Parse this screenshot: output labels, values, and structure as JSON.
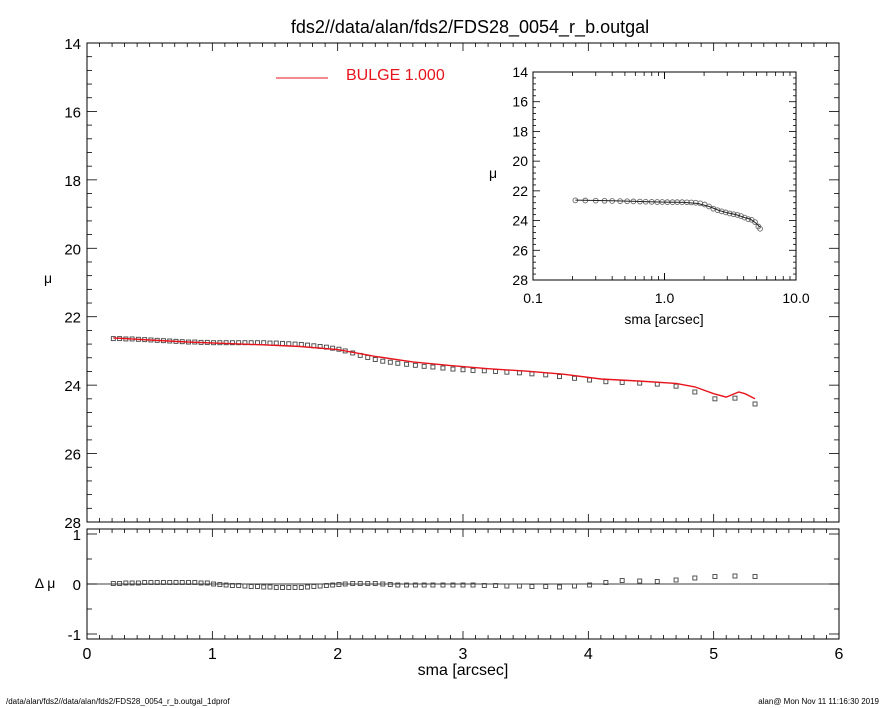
{
  "title": "fds2//data/alan/fds2/FDS28_0054_r_b.outgal",
  "footer": {
    "left": "/data/alan/fds2//data/alan/fds2/FDS28_0054_r_b.outgal_1dprof",
    "right": "alan@  Mon Nov 11 11:16:30 2019"
  },
  "colors": {
    "model": "#e8141c",
    "data": "#444444",
    "axis": "#000000"
  },
  "chart_data": [
    {
      "id": "main",
      "type": "scatter",
      "xlabel": "sma [arcsec]",
      "ylabel": "μ",
      "xlim": [
        0,
        6
      ],
      "ylim": [
        28,
        14
      ],
      "y_inverted": true,
      "xticks": [
        "0",
        "1",
        "2",
        "3",
        "4",
        "5",
        "6"
      ],
      "yticks": [
        "14",
        "16",
        "18",
        "20",
        "22",
        "24",
        "26",
        "28"
      ],
      "legend": {
        "label": "BULGE  1.000",
        "color": "#e8141c",
        "placement": "top-center"
      },
      "series": [
        {
          "kind": "points",
          "x": [
            0.21,
            0.26,
            0.31,
            0.36,
            0.41,
            0.46,
            0.51,
            0.56,
            0.61,
            0.66,
            0.71,
            0.76,
            0.81,
            0.86,
            0.91,
            0.96,
            1.01,
            1.06,
            1.11,
            1.16,
            1.21,
            1.26,
            1.31,
            1.36,
            1.41,
            1.46,
            1.51,
            1.56,
            1.61,
            1.66,
            1.71,
            1.76,
            1.81,
            1.86,
            1.91,
            1.96,
            2.01,
            2.06,
            2.12,
            2.18,
            2.24,
            2.3,
            2.36,
            2.42,
            2.48,
            2.55,
            2.62,
            2.69,
            2.76,
            2.84,
            2.92,
            3.0,
            3.08,
            3.17,
            3.26,
            3.35,
            3.45,
            3.55,
            3.66,
            3.77,
            3.89,
            4.01,
            4.14,
            4.27,
            4.41,
            4.55,
            4.7,
            4.85,
            5.01,
            5.17,
            5.33
          ],
          "y": [
            22.64,
            22.64,
            22.65,
            22.65,
            22.66,
            22.67,
            22.68,
            22.69,
            22.7,
            22.71,
            22.72,
            22.73,
            22.74,
            22.74,
            22.75,
            22.75,
            22.76,
            22.76,
            22.76,
            22.76,
            22.76,
            22.76,
            22.76,
            22.76,
            22.76,
            22.77,
            22.77,
            22.78,
            22.79,
            22.8,
            22.81,
            22.83,
            22.85,
            22.87,
            22.89,
            22.92,
            22.95,
            23.0,
            23.06,
            23.13,
            23.19,
            23.25,
            23.3,
            23.33,
            23.36,
            23.39,
            23.42,
            23.45,
            23.47,
            23.5,
            23.53,
            23.55,
            23.57,
            23.58,
            23.6,
            23.62,
            23.64,
            23.67,
            23.7,
            23.75,
            23.8,
            23.85,
            23.9,
            23.92,
            23.94,
            23.97,
            24.03,
            24.2,
            24.4,
            24.38,
            24.55
          ]
        },
        {
          "kind": "line",
          "name": "BULGE  1.000",
          "x": [
            0.21,
            0.5,
            0.8,
            1.1,
            1.4,
            1.7,
            2.0,
            2.3,
            2.6,
            2.9,
            3.2,
            3.5,
            3.8,
            4.1,
            4.4,
            4.7,
            4.85,
            5.0,
            5.1,
            5.2,
            5.25,
            5.33
          ],
          "y": [
            22.62,
            22.68,
            22.74,
            22.78,
            22.82,
            22.87,
            22.96,
            23.16,
            23.32,
            23.43,
            23.52,
            23.59,
            23.68,
            23.82,
            23.88,
            23.95,
            24.05,
            24.25,
            24.35,
            24.2,
            24.25,
            24.4
          ]
        }
      ]
    },
    {
      "id": "residual",
      "type": "scatter",
      "xlabel": "sma [arcsec]",
      "ylabel": "Δ μ",
      "xlim": [
        0,
        6
      ],
      "ylim": [
        -1.1,
        1.1
      ],
      "xticks": [
        "0",
        "1",
        "2",
        "3",
        "4",
        "5",
        "6"
      ],
      "yticks": [
        "-1",
        "0",
        "1"
      ],
      "zero_line": true,
      "series": [
        {
          "kind": "points",
          "x": [
            0.21,
            0.26,
            0.31,
            0.36,
            0.41,
            0.46,
            0.51,
            0.56,
            0.61,
            0.66,
            0.71,
            0.76,
            0.81,
            0.86,
            0.91,
            0.96,
            1.01,
            1.06,
            1.11,
            1.16,
            1.21,
            1.26,
            1.31,
            1.36,
            1.41,
            1.46,
            1.51,
            1.56,
            1.61,
            1.66,
            1.71,
            1.76,
            1.81,
            1.86,
            1.91,
            1.96,
            2.01,
            2.06,
            2.12,
            2.18,
            2.24,
            2.3,
            2.36,
            2.42,
            2.48,
            2.55,
            2.62,
            2.69,
            2.76,
            2.84,
            2.92,
            3.0,
            3.08,
            3.17,
            3.26,
            3.35,
            3.45,
            3.55,
            3.66,
            3.77,
            3.89,
            4.01,
            4.14,
            4.27,
            4.41,
            4.55,
            4.7,
            4.85,
            5.01,
            5.17,
            5.33
          ],
          "y": [
            0.01,
            0.01,
            0.02,
            0.02,
            0.02,
            0.03,
            0.03,
            0.03,
            0.03,
            0.03,
            0.03,
            0.03,
            0.03,
            0.03,
            0.02,
            0.02,
            0.0,
            -0.01,
            -0.02,
            -0.03,
            -0.03,
            -0.04,
            -0.05,
            -0.05,
            -0.06,
            -0.06,
            -0.07,
            -0.07,
            -0.07,
            -0.07,
            -0.07,
            -0.06,
            -0.05,
            -0.04,
            -0.03,
            -0.02,
            -0.01,
            0.0,
            0.01,
            0.01,
            0.01,
            0.01,
            0.0,
            -0.01,
            -0.02,
            -0.02,
            -0.02,
            -0.02,
            -0.02,
            -0.02,
            -0.02,
            -0.02,
            -0.02,
            -0.03,
            -0.03,
            -0.04,
            -0.04,
            -0.05,
            -0.05,
            -0.06,
            -0.04,
            -0.02,
            0.03,
            0.07,
            0.06,
            0.05,
            0.08,
            0.12,
            0.15,
            0.16,
            0.15
          ]
        }
      ]
    },
    {
      "id": "inset",
      "type": "scatter",
      "xlabel": "sma [arcsec]",
      "ylabel": "μ",
      "xscale": "log",
      "xlim": [
        0.1,
        10.0
      ],
      "ylim": [
        28,
        14
      ],
      "y_inverted": true,
      "xticks": [
        "0.1",
        "1.0",
        "10.0"
      ],
      "yticks": [
        "14",
        "16",
        "18",
        "20",
        "22",
        "24",
        "26",
        "28"
      ],
      "series": [
        {
          "kind": "points",
          "x": [
            0.21,
            0.25,
            0.3,
            0.35,
            0.4,
            0.46,
            0.52,
            0.58,
            0.65,
            0.72,
            0.8,
            0.88,
            0.96,
            1.05,
            1.15,
            1.25,
            1.36,
            1.48,
            1.6,
            1.73,
            1.87,
            2.02,
            2.18,
            2.35,
            2.53,
            2.72,
            2.92,
            3.13,
            3.35,
            3.58,
            3.82,
            4.07,
            4.33,
            4.6,
            4.88,
            5.17,
            5.33
          ],
          "y": [
            22.64,
            22.65,
            22.66,
            22.67,
            22.68,
            22.69,
            22.7,
            22.71,
            22.72,
            22.73,
            22.74,
            22.75,
            22.75,
            22.76,
            22.76,
            22.76,
            22.76,
            22.77,
            22.78,
            22.8,
            22.84,
            22.92,
            23.05,
            23.2,
            23.3,
            23.38,
            23.45,
            23.52,
            23.57,
            23.62,
            23.7,
            23.8,
            23.9,
            23.95,
            24.1,
            24.4,
            24.55
          ]
        },
        {
          "kind": "line",
          "x": [
            0.21,
            0.4,
            0.7,
            1.0,
            1.4,
            1.8,
            2.2,
            2.6,
            3.0,
            3.5,
            4.0,
            4.5,
            5.0,
            5.33
          ],
          "y": [
            22.62,
            22.67,
            22.72,
            22.76,
            22.78,
            22.85,
            23.06,
            23.32,
            23.48,
            23.6,
            23.78,
            23.9,
            24.2,
            24.45
          ]
        }
      ]
    }
  ]
}
